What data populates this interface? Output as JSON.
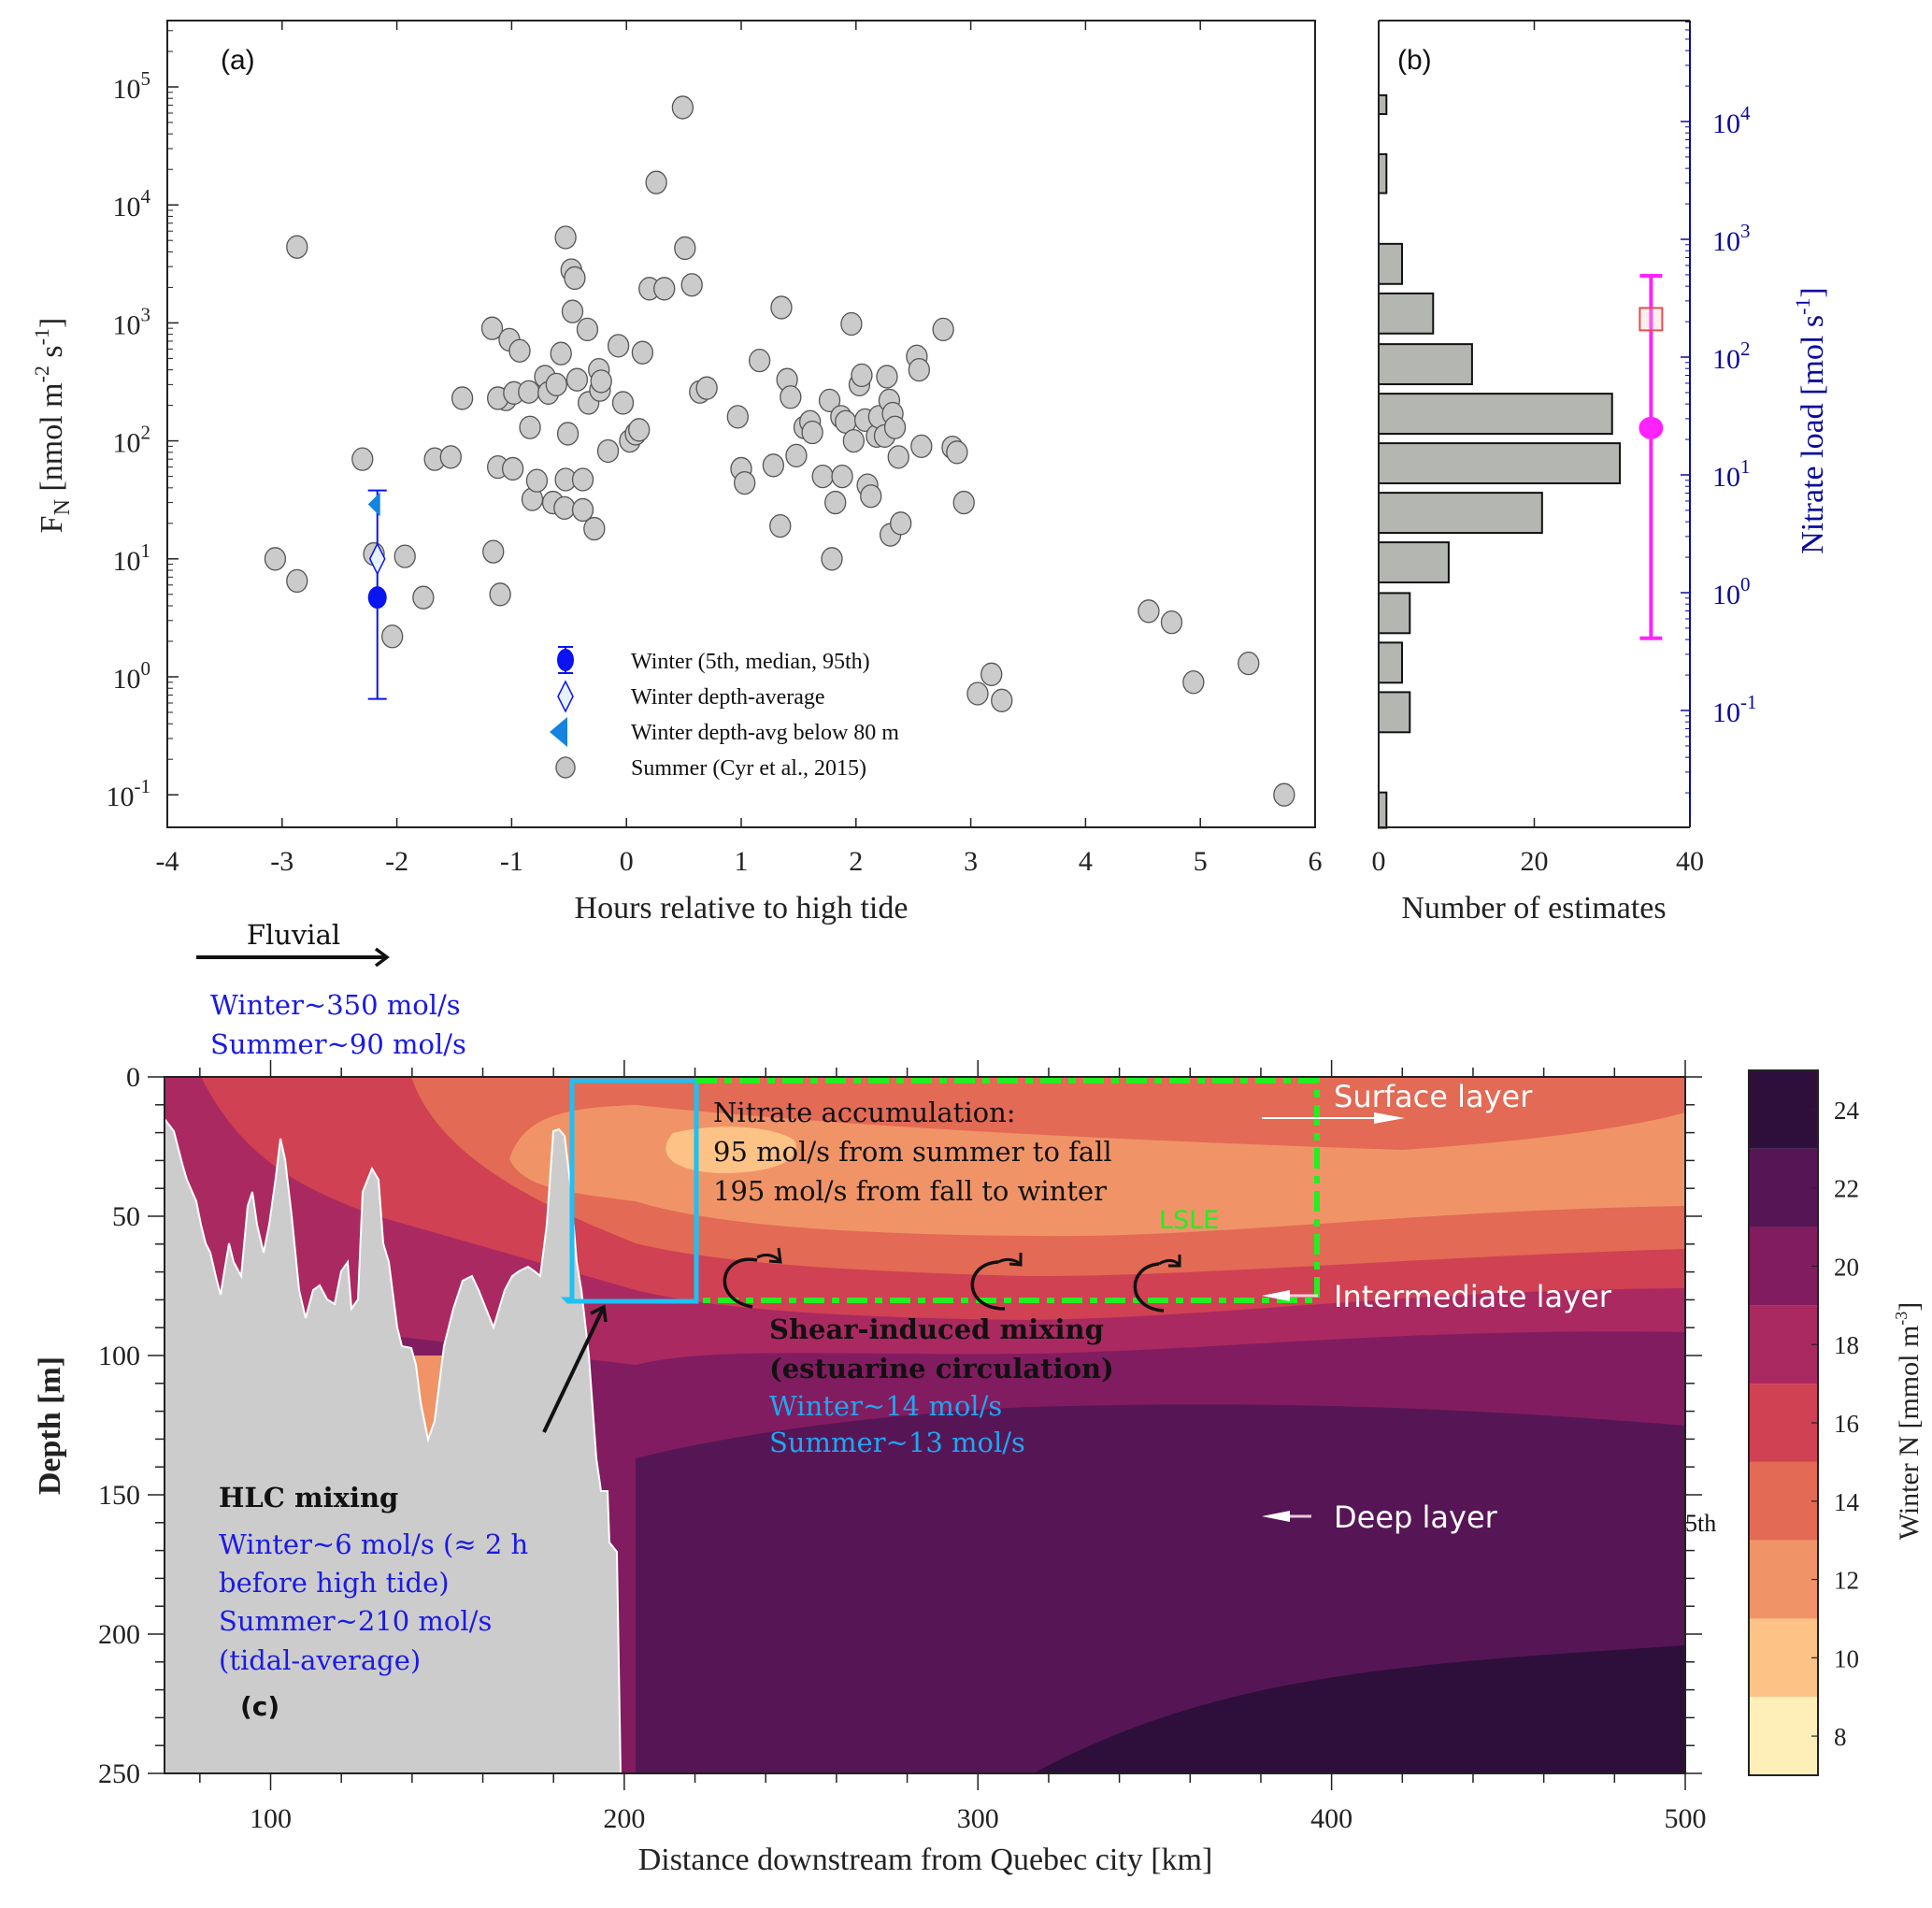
{
  "chart_data": [
    {
      "panel": "(a)",
      "type": "scatter",
      "xlabel": "Hours relative to high tide",
      "ylabel": "F_N [nmol m^-2 s^-1]",
      "ylabel_parts": {
        "main": "F",
        "sub": "N",
        "unit": "[nmol m",
        "exp1": "-2",
        "mid": " s",
        "exp2": "-1",
        "end": "]"
      },
      "xlim": [
        -4,
        6
      ],
      "yscale": "log",
      "ylim_log10": [
        -1.83,
        5.58
      ],
      "xticks": [
        -4,
        -3,
        -2,
        -1,
        0,
        1,
        2,
        3,
        4,
        5,
        6
      ],
      "yticks": [
        {
          "base": "10",
          "exp": "-1",
          "log": -1
        },
        {
          "base": "10",
          "exp": "0",
          "log": 0
        },
        {
          "base": "10",
          "exp": "1",
          "log": 1
        },
        {
          "base": "10",
          "exp": "2",
          "log": 2
        },
        {
          "base": "10",
          "exp": "3",
          "log": 3
        },
        {
          "base": "10",
          "exp": "4",
          "log": 4
        },
        {
          "base": "10",
          "exp": "5",
          "log": 5
        }
      ],
      "legend_position": "bottom-center",
      "legend": [
        {
          "label": "Winter (5th, median, 95th)",
          "marker": "filled-circle-errorbar",
          "color": "#0a14f0"
        },
        {
          "label": "Winter depth-average",
          "marker": "open-diamond",
          "color": "#0a14f0"
        },
        {
          "label": "Winter depth-avg below 80 m",
          "marker": "left-triangle",
          "color": "#1583e0"
        },
        {
          "label": "Summer (Cyr et al., 2015)",
          "marker": "gray-circle",
          "color": "#c8c8c8"
        }
      ],
      "winter": {
        "x": -2.17,
        "p5": 0.65,
        "median": 4.7,
        "p95": 38,
        "depth_average": 10,
        "depth_avg_below_80m": 29
      },
      "summer_points": [
        [
          -2.87,
          4400
        ],
        [
          -3.06,
          10
        ],
        [
          -2.87,
          6.5
        ],
        [
          -2.3,
          70
        ],
        [
          -2.2,
          11
        ],
        [
          -2.04,
          2.2
        ],
        [
          -1.93,
          10.5
        ],
        [
          -1.77,
          4.7
        ],
        [
          -1.67,
          70
        ],
        [
          -1.53,
          73
        ],
        [
          -1.43,
          230
        ],
        [
          -1.17,
          900
        ],
        [
          -1.05,
          225
        ],
        [
          -1.12,
          230
        ],
        [
          -1.12,
          60
        ],
        [
          -1.16,
          11.5
        ],
        [
          -1.1,
          5
        ],
        [
          -1.02,
          720
        ],
        [
          -0.98,
          255
        ],
        [
          -0.99,
          58
        ],
        [
          -0.93,
          580
        ],
        [
          -0.85,
          260
        ],
        [
          -0.84,
          130
        ],
        [
          -0.82,
          32
        ],
        [
          -0.78,
          46
        ],
        [
          -0.71,
          350
        ],
        [
          -0.68,
          255
        ],
        [
          -0.64,
          30
        ],
        [
          -0.61,
          300
        ],
        [
          -0.57,
          550
        ],
        [
          -0.53,
          47
        ],
        [
          -0.54,
          27
        ],
        [
          -0.53,
          5300
        ],
        [
          -0.51,
          115
        ],
        [
          -0.48,
          2800
        ],
        [
          -0.47,
          1250
        ],
        [
          -0.45,
          2400
        ],
        [
          -0.43,
          330
        ],
        [
          -0.38,
          47
        ],
        [
          -0.38,
          26
        ],
        [
          -0.34,
          880
        ],
        [
          -0.33,
          210
        ],
        [
          -0.28,
          18
        ],
        [
          -0.24,
          400
        ],
        [
          -0.23,
          270
        ],
        [
          -0.22,
          320
        ],
        [
          -0.16,
          82
        ],
        [
          -0.07,
          640
        ],
        [
          -0.03,
          210
        ],
        [
          0.03,
          100
        ],
        [
          0.08,
          115
        ],
        [
          0.11,
          124
        ],
        [
          0.14,
          560
        ],
        [
          0.26,
          15500
        ],
        [
          0.2,
          1950
        ],
        [
          0.33,
          1950
        ],
        [
          0.49,
          67000
        ],
        [
          0.51,
          4300
        ],
        [
          0.57,
          2100
        ],
        [
          0.64,
          260
        ],
        [
          0.7,
          280
        ],
        [
          0.97,
          160
        ],
        [
          1.0,
          58
        ],
        [
          1.03,
          44
        ],
        [
          1.16,
          480
        ],
        [
          1.28,
          62
        ],
        [
          1.34,
          19
        ],
        [
          1.35,
          1350
        ],
        [
          1.4,
          330
        ],
        [
          1.43,
          235
        ],
        [
          1.48,
          75
        ],
        [
          1.55,
          130
        ],
        [
          1.6,
          145
        ],
        [
          1.62,
          118
        ],
        [
          1.71,
          50
        ],
        [
          1.77,
          220
        ],
        [
          1.79,
          10
        ],
        [
          1.82,
          30
        ],
        [
          1.87,
          160
        ],
        [
          1.88,
          50
        ],
        [
          1.91,
          145
        ],
        [
          1.96,
          980
        ],
        [
          1.98,
          100
        ],
        [
          2.03,
          300
        ],
        [
          2.05,
          360
        ],
        [
          2.08,
          150
        ],
        [
          2.1,
          42
        ],
        [
          2.13,
          34
        ],
        [
          2.18,
          110
        ],
        [
          2.2,
          160
        ],
        [
          2.25,
          110
        ],
        [
          2.27,
          350
        ],
        [
          2.29,
          220
        ],
        [
          2.32,
          170
        ],
        [
          2.3,
          16
        ],
        [
          2.34,
          130
        ],
        [
          2.37,
          73
        ],
        [
          2.39,
          20
        ],
        [
          2.53,
          520
        ],
        [
          2.55,
          400
        ],
        [
          2.57,
          90
        ],
        [
          2.76,
          880
        ],
        [
          2.84,
          88
        ],
        [
          2.88,
          80
        ],
        [
          2.94,
          30
        ],
        [
          3.06,
          0.72
        ],
        [
          3.18,
          1.05
        ],
        [
          3.27,
          0.63
        ],
        [
          4.55,
          3.6
        ],
        [
          4.75,
          2.9
        ],
        [
          4.94,
          0.9
        ],
        [
          5.42,
          1.3
        ],
        [
          5.73,
          0.1
        ]
      ]
    },
    {
      "panel": "(b)",
      "type": "bar",
      "orientation": "horizontal",
      "xlabel": "Number of estimates",
      "ylabel_right": "Nitrate load [mol s^-1]",
      "ylabel_right_parts": {
        "main": "Nitrate load [mol s",
        "exp": "-1",
        "end": "]"
      },
      "xlim": [
        0,
        40
      ],
      "xticks": [
        0,
        20,
        40
      ],
      "bins_log10_FN": [
        [
          4.77,
          4.93
        ],
        [
          4.1,
          4.43
        ],
        [
          3.33,
          3.67
        ],
        [
          2.91,
          3.25
        ],
        [
          2.48,
          2.82
        ],
        [
          2.06,
          2.4
        ],
        [
          1.64,
          1.98
        ],
        [
          1.22,
          1.56
        ],
        [
          0.8,
          1.14
        ],
        [
          0.37,
          0.71
        ],
        [
          -0.05,
          0.29
        ],
        [
          -0.47,
          -0.13
        ],
        [
          -1.28,
          -0.98
        ]
      ],
      "counts": [
        1,
        1,
        3,
        7,
        12,
        30,
        31,
        21,
        9,
        4,
        3,
        4,
        1
      ],
      "right_axis": {
        "scale": "log",
        "color": "#0a0a9c",
        "ylim_log10": [
          -1.78,
          4.9
        ],
        "yticks": [
          {
            "base": "10",
            "exp": "-1",
            "log": -1
          },
          {
            "base": "10",
            "exp": "0",
            "log": 0
          },
          {
            "base": "10",
            "exp": "1",
            "log": 1
          },
          {
            "base": "10",
            "exp": "2",
            "log": 2
          },
          {
            "base": "10",
            "exp": "3",
            "log": 3
          },
          {
            "base": "10",
            "exp": "4",
            "log": 4
          }
        ]
      },
      "nitrate_load": {
        "x_count": 35,
        "median": 25,
        "low": 0.41,
        "high": 490,
        "square": 210,
        "errorbar_color": "#ff22ff",
        "square_color": "#e05050"
      }
    },
    {
      "panel": "(c)",
      "type": "heatmap",
      "subtype": "filled-contour",
      "xlabel": "Distance downstream from Quebec city [km]",
      "ylabel": "Depth [m]",
      "xlim": [
        70,
        500
      ],
      "ylim": [
        250,
        0
      ],
      "xticks": [
        100,
        200,
        300,
        400,
        500
      ],
      "yticks": [
        0,
        50,
        100,
        150,
        200,
        250
      ],
      "colorbar": {
        "label": "Winter N [mmol m^-3]",
        "label_parts": {
          "main": "Winter N [mmol m",
          "exp": "-3",
          "end": "]"
        },
        "range": [
          7,
          25
        ],
        "ticks": [
          8,
          10,
          12,
          14,
          16,
          18,
          20,
          22,
          24
        ],
        "levels": [
          {
            "from": 7,
            "to": 9,
            "color": "#feefb9"
          },
          {
            "from": 9,
            "to": 11,
            "color": "#fdc386"
          },
          {
            "from": 11,
            "to": 13,
            "color": "#f09468"
          },
          {
            "from": 13,
            "to": 15,
            "color": "#e36a55"
          },
          {
            "from": 15,
            "to": 17,
            "color": "#cf4153"
          },
          {
            "from": 17,
            "to": 19,
            "color": "#ab2961"
          },
          {
            "from": 19,
            "to": 21,
            "color": "#821c60"
          },
          {
            "from": 21,
            "to": 23,
            "color": "#561656"
          },
          {
            "from": 23,
            "to": 25,
            "color": "#2e0f3c"
          }
        ]
      },
      "bathymetry_color": "#cccccc"
    }
  ],
  "annotations": {
    "fluvial": {
      "label": "Fluvial",
      "winter": "Winter~350 mol/s",
      "summer": "Summer~90 mol/s"
    },
    "accumulation": {
      "title": "Nitrate accumulation:",
      "line1": "95 mol/s from summer to fall",
      "line2": "195 mol/s from fall to winter"
    },
    "lsle": "LSLE",
    "shear": {
      "title1": "Shear-induced mixing",
      "title2": "(estuarine circulation)",
      "winter": "Winter~14 mol/s",
      "summer": "Summer~13 mol/s"
    },
    "hlc": {
      "title": "HLC mixing",
      "line1": "Winter~6 mol/s (≈ 2 h",
      "line2": "before high tide)",
      "line3": "Summer~210 mol/s",
      "line4": "(tidal-average)"
    },
    "layers": {
      "surface": "Surface layer",
      "intermediate": "Intermediate layer",
      "deep": "Deep layer"
    },
    "fragment": "5th",
    "colors": {
      "blue_text": "#1a1ae6",
      "cyan_text": "#1fa6f2",
      "lsle_green": "#22ee22",
      "hlc_box": "#1ec0f5"
    }
  }
}
